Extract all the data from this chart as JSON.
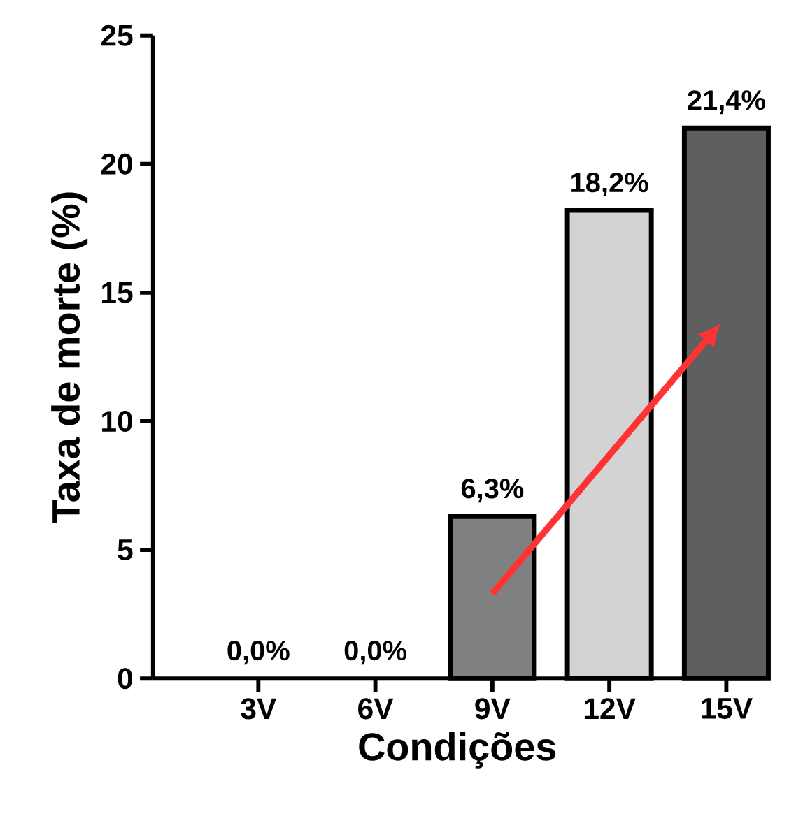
{
  "chart_data": {
    "type": "bar",
    "xlabel": "Condições",
    "ylabel": "Taxa de morte (%)",
    "categories": [
      "3V",
      "6V",
      "9V",
      "12V",
      "15V"
    ],
    "values": [
      0,
      0,
      6.3,
      18.2,
      21.4
    ],
    "colors": [
      "#808080",
      "#808080",
      "#808080",
      "#d3d3d3",
      "#5f5f5f"
    ],
    "value_labels": [
      "0,0%",
      "0,0%",
      "6,3%",
      "18,2%",
      "21,4%"
    ],
    "ylim": [
      0,
      25
    ],
    "yticks": [
      0,
      5,
      10,
      15,
      20,
      25
    ]
  }
}
